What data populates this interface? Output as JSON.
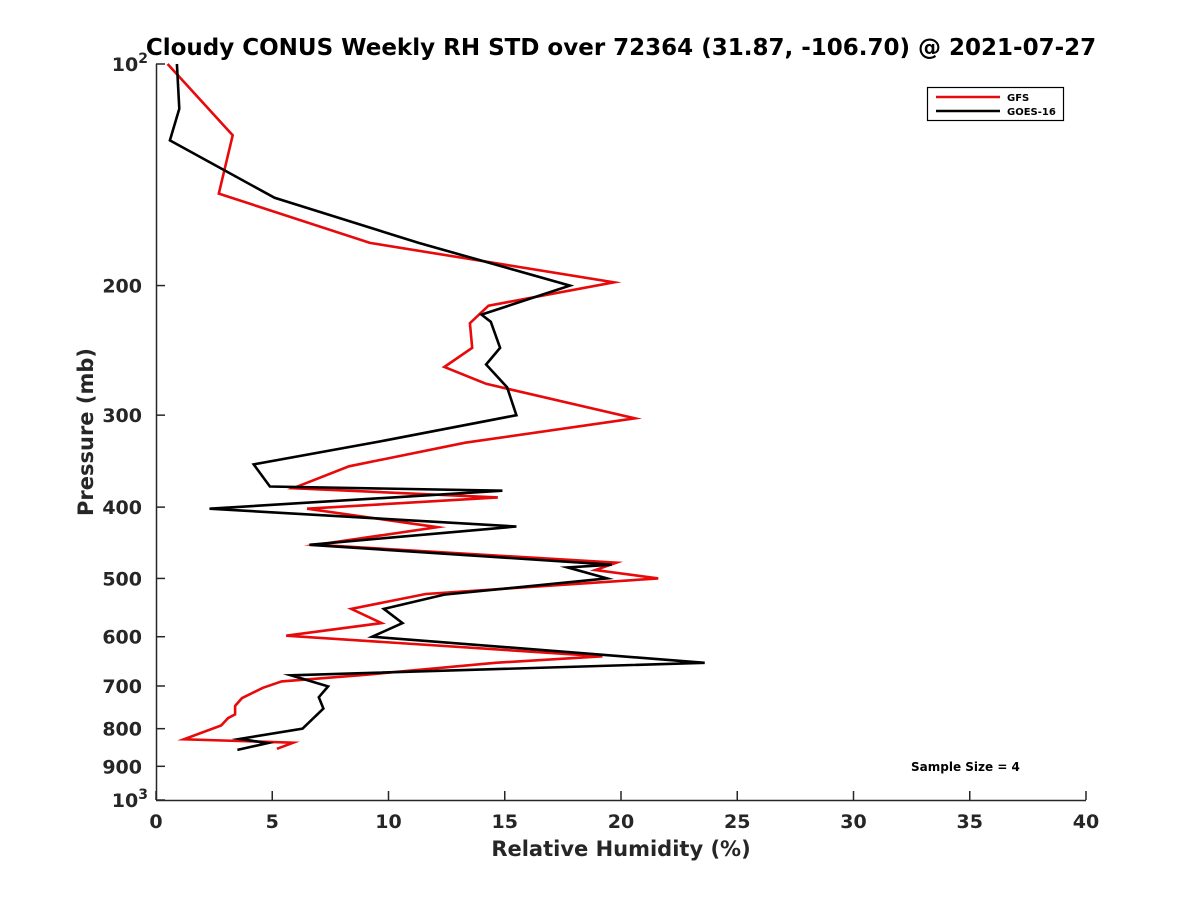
{
  "chart_data": {
    "type": "line",
    "title": "Cloudy CONUS Weekly RH STD over 72364 (31.87, -106.70) @ 2021-07-27",
    "xlabel": "Relative Humidity (%)",
    "ylabel": "Pressure (mb)",
    "xlim": [
      0,
      40
    ],
    "ylim": [
      100,
      1000
    ],
    "y_scale": "log",
    "y_reversed": true,
    "grid": false,
    "legend_position": "top-right",
    "x_ticks": [
      "0",
      "5",
      "10",
      "15",
      "20",
      "25",
      "30",
      "35",
      "40"
    ],
    "y_ticks": [
      {
        "value": 100,
        "base": "10",
        "exp": "2"
      },
      {
        "value": 200,
        "label": "200"
      },
      {
        "value": 300,
        "label": "300"
      },
      {
        "value": 400,
        "label": "400"
      },
      {
        "value": 500,
        "label": "500"
      },
      {
        "value": 600,
        "label": "600"
      },
      {
        "value": 700,
        "label": "700"
      },
      {
        "value": 800,
        "label": "800"
      },
      {
        "value": 900,
        "label": "900"
      },
      {
        "value": 1000,
        "base": "10",
        "exp": "3"
      }
    ],
    "annotation": "Sample Size = 4",
    "series": [
      {
        "name": "GFS",
        "color": "#e8090a",
        "points": [
          [
            0.5,
            100
          ],
          [
            3.3,
            125
          ],
          [
            2.7,
            150
          ],
          [
            9.2,
            175
          ],
          [
            19.7,
            198
          ],
          [
            14.3,
            213
          ],
          [
            13.5,
            225
          ],
          [
            13.6,
            243
          ],
          [
            12.4,
            258
          ],
          [
            14.2,
            272
          ],
          [
            20.6,
            303
          ],
          [
            13.3,
            327
          ],
          [
            8.3,
            352
          ],
          [
            5.9,
            377
          ],
          [
            14.7,
            388
          ],
          [
            6.5,
            402
          ],
          [
            12.1,
            426
          ],
          [
            6.9,
            450
          ],
          [
            19.8,
            476
          ],
          [
            18.9,
            487
          ],
          [
            21.6,
            500
          ],
          [
            11.6,
            525
          ],
          [
            8.4,
            550
          ],
          [
            9.7,
            575
          ],
          [
            5.6,
            598
          ],
          [
            19.2,
            638
          ],
          [
            14.6,
            651
          ],
          [
            9.0,
            676
          ],
          [
            5.4,
            690
          ],
          [
            4.6,
            704
          ],
          [
            3.7,
            727
          ],
          [
            3.4,
            745
          ],
          [
            3.4,
            765
          ],
          [
            3.1,
            774
          ],
          [
            2.8,
            792
          ],
          [
            1.2,
            827
          ],
          [
            5.9,
            836
          ],
          [
            5.2,
            852
          ]
        ]
      },
      {
        "name": "GOES-16",
        "color": "#000000",
        "points": [
          [
            0.9,
            100
          ],
          [
            1.0,
            115
          ],
          [
            0.6,
            127
          ],
          [
            5.1,
            152
          ],
          [
            11.3,
            175
          ],
          [
            17.8,
            200
          ],
          [
            14.0,
            219
          ],
          [
            14.4,
            224
          ],
          [
            14.8,
            243
          ],
          [
            14.2,
            256
          ],
          [
            15.1,
            275
          ],
          [
            15.5,
            300
          ],
          [
            9.8,
            325
          ],
          [
            4.2,
            350
          ],
          [
            4.9,
            375
          ],
          [
            14.9,
            380
          ],
          [
            2.3,
            402
          ],
          [
            15.5,
            425
          ],
          [
            6.6,
            450
          ],
          [
            19.6,
            479
          ],
          [
            17.7,
            483
          ],
          [
            19.4,
            500
          ],
          [
            12.4,
            526
          ],
          [
            9.8,
            550
          ],
          [
            10.6,
            575
          ],
          [
            9.3,
            600
          ],
          [
            23.6,
            651
          ],
          [
            5.8,
            677
          ],
          [
            7.4,
            701
          ],
          [
            7.0,
            725
          ],
          [
            7.2,
            751
          ],
          [
            6.3,
            800
          ],
          [
            3.6,
            826
          ],
          [
            4.8,
            837
          ],
          [
            3.5,
            855
          ]
        ]
      }
    ]
  }
}
